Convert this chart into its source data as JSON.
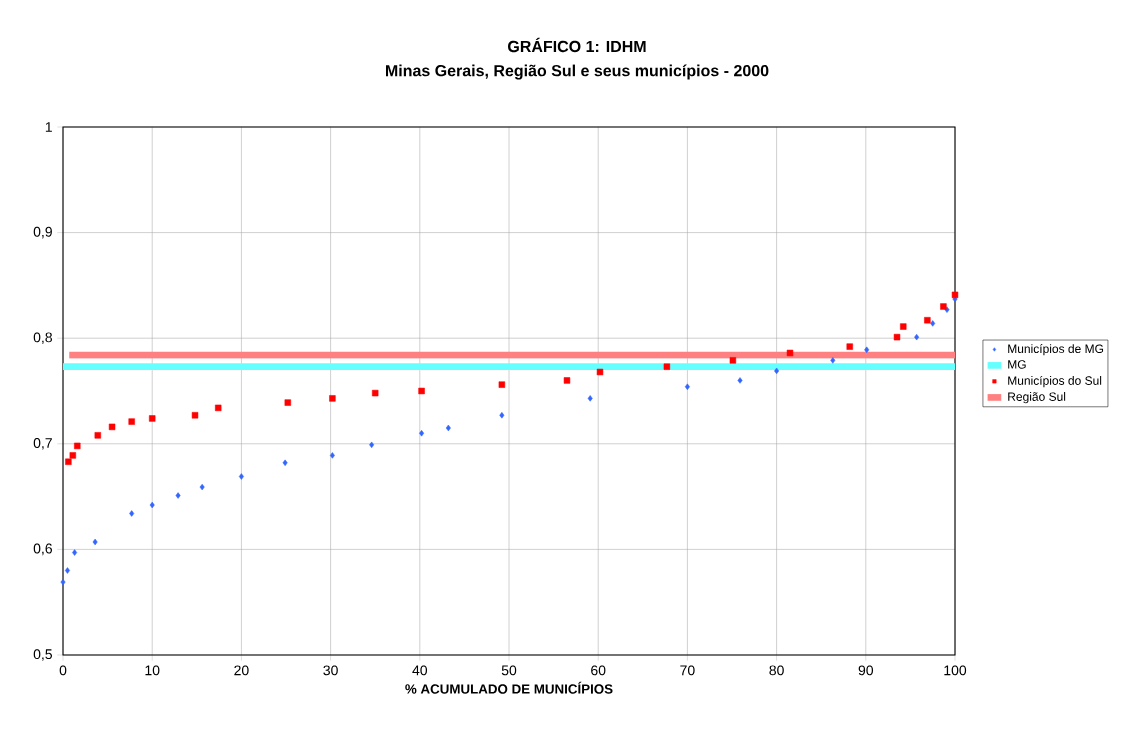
{
  "chart_data": {
    "type": "scatter",
    "title": "GRÁFICO 1: IDHM",
    "subtitle": "Minas Gerais, Região Sul e seus municípios - 2000",
    "xlabel": "% ACUMULADO DE MUNICÍPIOS",
    "xlim": [
      0,
      100
    ],
    "xticks": [
      0,
      10,
      20,
      30,
      40,
      50,
      60,
      70,
      80,
      90,
      100
    ],
    "ylim": [
      0.5,
      1
    ],
    "yticks": [
      {
        "value": 0.5,
        "label": "0,5"
      },
      {
        "value": 0.6,
        "label": "0,6"
      },
      {
        "value": 0.7,
        "label": "0,7"
      },
      {
        "value": 0.8,
        "label": "0,8"
      },
      {
        "value": 0.9,
        "label": "0,9"
      },
      {
        "value": 1,
        "label": "1"
      }
    ],
    "grid": true,
    "legend": "right",
    "series": [
      {
        "name": "Municípios de MG",
        "marker": "diamond",
        "color": "#3366ff",
        "x": [
          0,
          0.5,
          1.3,
          3.6,
          7.7,
          10,
          12.9,
          15.6,
          20,
          24.9,
          30.2,
          34.6,
          40.2,
          43.2,
          49.2,
          59.1,
          70,
          75.9,
          80,
          86.3,
          90.1,
          95.7,
          97.5,
          99.1,
          100
        ],
        "values": [
          0.569,
          0.58,
          0.597,
          0.607,
          0.634,
          0.642,
          0.651,
          0.659,
          0.669,
          0.682,
          0.689,
          0.699,
          0.71,
          0.715,
          0.727,
          0.743,
          0.754,
          0.76,
          0.769,
          0.779,
          0.789,
          0.801,
          0.814,
          0.827,
          0.837
        ]
      },
      {
        "name": "MG",
        "type": "line",
        "color": "#66ffff",
        "x": [
          0,
          100
        ],
        "values": [
          0.773,
          0.773
        ]
      },
      {
        "name": "Municípios do Sul",
        "marker": "square",
        "color": "#ff0000",
        "x": [
          0.6,
          1.1,
          1.6,
          3.9,
          5.5,
          7.7,
          10,
          14.8,
          17.4,
          25.2,
          30.2,
          35,
          40.2,
          49.2,
          56.5,
          60.2,
          67.7,
          75.1,
          81.5,
          88.2,
          93.5,
          94.2,
          96.9,
          98.7,
          100
        ],
        "values": [
          0.683,
          0.689,
          0.698,
          0.708,
          0.716,
          0.721,
          0.724,
          0.727,
          0.734,
          0.739,
          0.743,
          0.748,
          0.75,
          0.756,
          0.76,
          0.768,
          0.773,
          0.779,
          0.786,
          0.792,
          0.801,
          0.811,
          0.817,
          0.83,
          0.841
        ]
      },
      {
        "name": "Região Sul",
        "type": "line",
        "color": "#ff8080",
        "x": [
          0.7,
          100
        ],
        "values": [
          0.784,
          0.784
        ]
      }
    ]
  }
}
